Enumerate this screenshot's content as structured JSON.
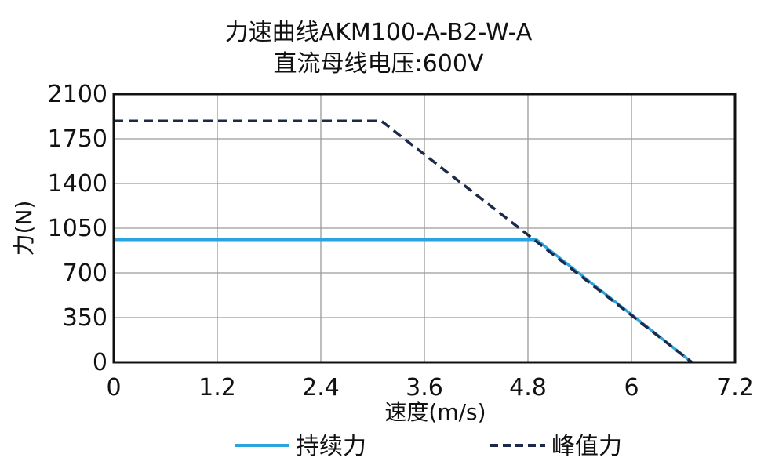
{
  "chart_data": {
    "type": "line",
    "title": "力速曲线AKM100-A-B2-W-A",
    "subtitle": "直流母线电压:600V",
    "xlabel": "速度(m/s)",
    "ylabel": "力(N)",
    "xlim": [
      0,
      7.2
    ],
    "ylim": [
      0,
      2100
    ],
    "xticks": [
      "0",
      "1.2",
      "2.4",
      "3.6",
      "4.8",
      "6",
      "7.2"
    ],
    "xtick_values": [
      0,
      1.2,
      2.4,
      3.6,
      4.8,
      6,
      7.2
    ],
    "yticks": [
      "0",
      "350",
      "700",
      "1050",
      "1400",
      "1750",
      "2100"
    ],
    "ytick_values": [
      0,
      350,
      700,
      1050,
      1400,
      1750,
      2100
    ],
    "grid": true,
    "legend_position": "bottom",
    "series": [
      {
        "name": "持续力",
        "style": "solid",
        "color": "#2aa3df",
        "x": [
          0,
          4.9,
          6.7
        ],
        "y": [
          960,
          960,
          0
        ]
      },
      {
        "name": "峰值力",
        "style": "dashed",
        "color": "#1c2a4a",
        "x": [
          0,
          3.1,
          6.7
        ],
        "y": [
          1890,
          1890,
          0
        ]
      }
    ]
  }
}
